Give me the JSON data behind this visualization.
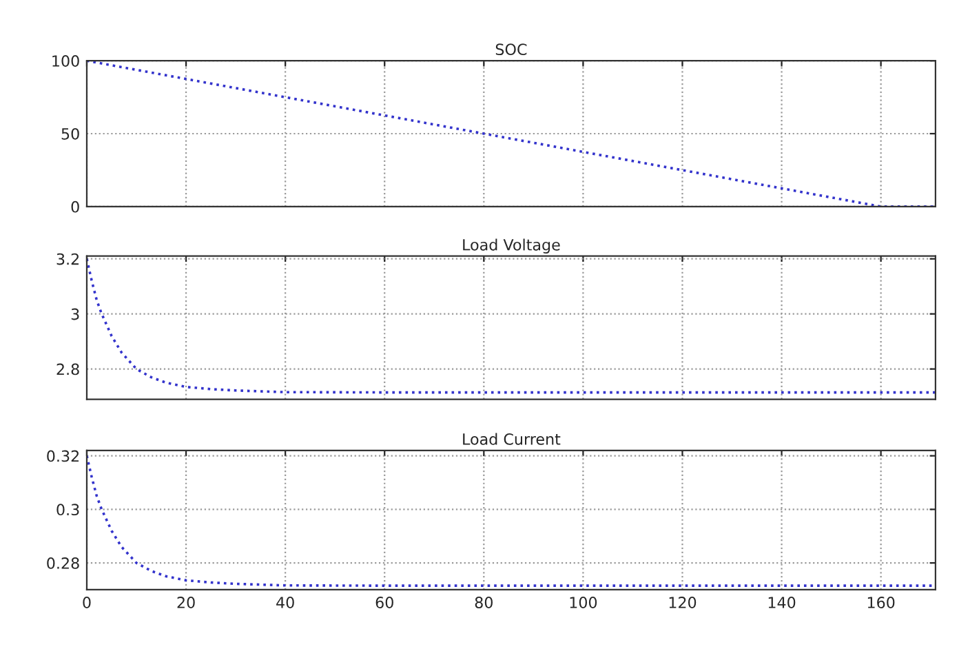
{
  "chart_data": [
    {
      "type": "line",
      "title": "SOC",
      "x": [
        0,
        20,
        40,
        60,
        80,
        100,
        120,
        140,
        160,
        165,
        171
      ],
      "series": [
        {
          "color": "#3333cc",
          "values": [
            100,
            87.5,
            75,
            62.5,
            50,
            37.5,
            25,
            12.5,
            0,
            0,
            0
          ]
        }
      ],
      "xlim": [
        0,
        171
      ],
      "xticks": [
        0,
        20,
        40,
        60,
        80,
        100,
        120,
        140,
        160
      ],
      "ylim": [
        0,
        100
      ],
      "yticks": [
        0,
        50,
        100
      ],
      "grid": true,
      "tick_labels": "y",
      "line_style": "dotted",
      "marker": "none"
    },
    {
      "type": "line",
      "title": "Load Voltage",
      "x": [
        0,
        1,
        2,
        3,
        5,
        7,
        10,
        13,
        16,
        20,
        25,
        30,
        40,
        60,
        100,
        140,
        171
      ],
      "series": [
        {
          "color": "#3333cc",
          "values": [
            3.2,
            3.12,
            3.05,
            3.0,
            2.92,
            2.86,
            2.8,
            2.77,
            2.75,
            2.735,
            2.727,
            2.722,
            2.716,
            2.715,
            2.715,
            2.715,
            2.715
          ]
        }
      ],
      "xlim": [
        0,
        171
      ],
      "xticks": [
        0,
        20,
        40,
        60,
        80,
        100,
        120,
        140,
        160
      ],
      "ylim": [
        2.69,
        3.21
      ],
      "yticks": [
        2.8,
        3,
        3.2
      ],
      "grid": true,
      "tick_labels": "y",
      "line_style": "dotted",
      "marker": "none"
    },
    {
      "type": "line",
      "title": "Load Current",
      "x": [
        0,
        1,
        2,
        3,
        5,
        7,
        10,
        13,
        16,
        20,
        25,
        30,
        40,
        60,
        100,
        140,
        171
      ],
      "series": [
        {
          "color": "#3333cc",
          "values": [
            0.32,
            0.312,
            0.305,
            0.3,
            0.292,
            0.286,
            0.28,
            0.277,
            0.275,
            0.2735,
            0.2727,
            0.2722,
            0.2716,
            0.2715,
            0.2715,
            0.2715,
            0.2715
          ]
        }
      ],
      "xlim": [
        0,
        171
      ],
      "xticks": [
        0,
        20,
        40,
        60,
        80,
        100,
        120,
        140,
        160
      ],
      "ylim": [
        0.27,
        0.322
      ],
      "yticks": [
        0.28,
        0.3,
        0.32
      ],
      "grid": true,
      "line_style": "dotted",
      "marker": "none"
    }
  ]
}
